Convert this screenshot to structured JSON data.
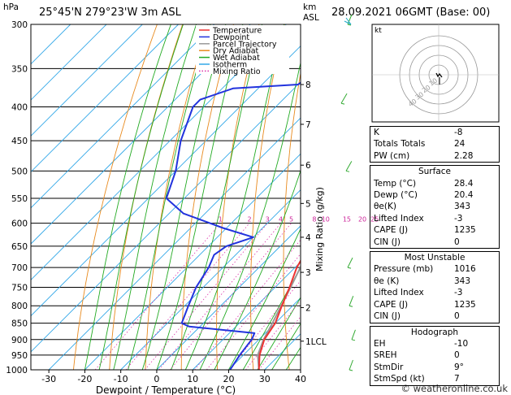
{
  "header": {
    "location": "25°45'N  279°23'W  3m  ASL",
    "datetime": "28.09.2021  06GMT  (Base: 00)",
    "pressure_unit": "hPa",
    "km_label": "km",
    "asl_label": "ASL",
    "mixing_ratio_label": "Mixing Ratio (g/kg)",
    "credit": "© weatheronline.co.uk"
  },
  "chart_data": {
    "type": "skew-t",
    "xlabel": "Dewpoint / Temperature (°C)",
    "temperature_ticks": [
      -30,
      -20,
      -10,
      0,
      10,
      20,
      30,
      40
    ],
    "temperature_range": [
      -35,
      40
    ],
    "pressure_ticks": [
      300,
      350,
      400,
      450,
      500,
      550,
      600,
      650,
      700,
      750,
      800,
      850,
      900,
      950,
      1000
    ],
    "pressure_range": [
      300,
      1000
    ],
    "height_km_ticks": [
      {
        "label": "8",
        "p": 370
      },
      {
        "label": "7",
        "p": 425
      },
      {
        "label": "6",
        "p": 490
      },
      {
        "label": "5",
        "p": 560
      },
      {
        "label": "4",
        "p": 630
      },
      {
        "label": "3",
        "p": 712
      },
      {
        "label": "2",
        "p": 805
      },
      {
        "label": "1LCL",
        "p": 905
      }
    ],
    "mixing_ratio_labels": [
      "1",
      "2",
      "3",
      "4",
      "5",
      "8",
      "10",
      "15",
      "20",
      "25"
    ],
    "mixing_ratio_values": [
      1,
      2,
      3,
      4,
      5,
      8,
      10,
      15,
      20,
      25
    ],
    "legend": [
      "Temperature",
      "Dewpoint",
      "Parcel Trajectory",
      "Dry Adiabat",
      "Wet Adiabat",
      "Isotherm",
      "Mixing Ratio"
    ],
    "legend_placement": "top-center",
    "series": [
      {
        "key": "temperature",
        "color": "#ee3333",
        "points": [
          [
            1000,
            28.4
          ],
          [
            950,
            24.5
          ],
          [
            900,
            21.5
          ],
          [
            850,
            20.0
          ],
          [
            800,
            17.0
          ],
          [
            750,
            14.0
          ],
          [
            700,
            10.5
          ],
          [
            650,
            8.0
          ],
          [
            600,
            4.5
          ],
          [
            550,
            0.5
          ],
          [
            500,
            -4.5
          ],
          [
            450,
            -9.5
          ],
          [
            400,
            -15.5
          ],
          [
            350,
            -24.0
          ],
          [
            300,
            -33.0
          ]
        ]
      },
      {
        "key": "dewpoint",
        "color": "#2233dd",
        "points": [
          [
            1000,
            20.4
          ],
          [
            950,
            19.0
          ],
          [
            900,
            18.0
          ],
          [
            880,
            17.0
          ],
          [
            860,
            -3.0
          ],
          [
            850,
            -6.0
          ],
          [
            800,
            -9.0
          ],
          [
            750,
            -12.0
          ],
          [
            700,
            -14.0
          ],
          [
            670,
            -16.0
          ],
          [
            650,
            -15.0
          ],
          [
            630,
            -10.0
          ],
          [
            610,
            -21.0
          ],
          [
            580,
            -36.0
          ],
          [
            550,
            -45.0
          ],
          [
            500,
            -50.0
          ],
          [
            450,
            -57.0
          ],
          [
            400,
            -63.0
          ],
          [
            390,
            -63.0
          ],
          [
            375,
            -57.0
          ],
          [
            370,
            -40.0
          ],
          [
            350,
            -38.0
          ],
          [
            335,
            -28.0
          ],
          [
            318,
            -35.0
          ],
          [
            300,
            -43.0
          ]
        ]
      },
      {
        "key": "parcel",
        "color": "#999999",
        "points": [
          [
            1000,
            28.4
          ],
          [
            950,
            24.0
          ],
          [
            900,
            21.3
          ],
          [
            850,
            19.2
          ],
          [
            800,
            16.8
          ],
          [
            750,
            14.3
          ],
          [
            700,
            11.5
          ],
          [
            650,
            8.5
          ],
          [
            600,
            5.0
          ],
          [
            550,
            1.2
          ],
          [
            500,
            -3.2
          ],
          [
            450,
            -8.0
          ],
          [
            400,
            -13.8
          ],
          [
            350,
            -20.8
          ],
          [
            300,
            -29.0
          ]
        ]
      }
    ]
  },
  "hodograph": {
    "label": "kt",
    "ring_labels": [
      "10",
      "20",
      "30",
      "40"
    ]
  },
  "indices": {
    "top": [
      {
        "label": "K",
        "value": "-8"
      },
      {
        "label": "Totals Totals",
        "value": "24"
      },
      {
        "label": "PW (cm)",
        "value": "2.28"
      }
    ],
    "surface_title": "Surface",
    "surface": [
      {
        "label": "Temp (°C)",
        "value": "28.4"
      },
      {
        "label": "Dewp (°C)",
        "value": "20.4"
      },
      {
        "label": "θe(K)",
        "value": "343"
      },
      {
        "label": "Lifted Index",
        "value": "-3"
      },
      {
        "label": "CAPE (J)",
        "value": "1235"
      },
      {
        "label": "CIN (J)",
        "value": "0"
      }
    ],
    "mu_title": "Most Unstable",
    "most_unstable": [
      {
        "label": "Pressure (mb)",
        "value": "1016"
      },
      {
        "label": "θe (K)",
        "value": "343"
      },
      {
        "label": "Lifted Index",
        "value": "-3"
      },
      {
        "label": "CAPE (J)",
        "value": "1235"
      },
      {
        "label": "CIN (J)",
        "value": "0"
      }
    ],
    "hodo_title": "Hodograph",
    "hodograph": [
      {
        "label": "EH",
        "value": "-10"
      },
      {
        "label": "SREH",
        "value": "0"
      },
      {
        "label": "StmDir",
        "value": "9°"
      },
      {
        "label": "StmSpd (kt)",
        "value": "7"
      }
    ]
  }
}
